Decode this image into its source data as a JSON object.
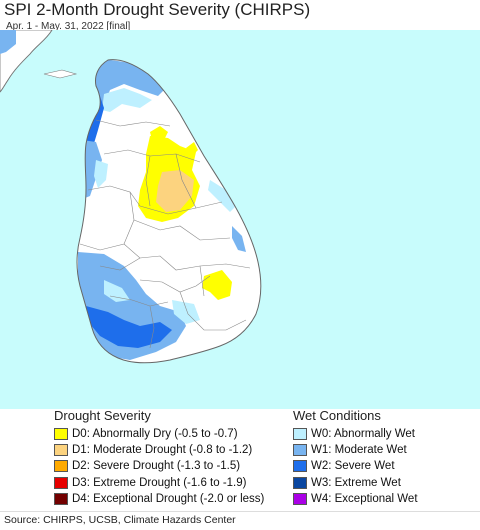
{
  "header": {
    "title": "SPI 2-Month Drought Severity (CHIRPS)",
    "subtitle": "Apr. 1 - May. 31, 2022 [final]"
  },
  "map": {
    "sea_color": "#c8fcfc",
    "land_color": "#ffffff",
    "border_color": "#777777"
  },
  "legend": {
    "drought": {
      "title": "Drought Severity",
      "items": [
        {
          "label": "D0: Abnormally Dry (-0.5 to -0.7)",
          "color": "#ffff00"
        },
        {
          "label": "D1: Moderate Drought (-0.8 to -1.2)",
          "color": "#fcd37f"
        },
        {
          "label": "D2: Severe Drought (-1.3 to -1.5)",
          "color": "#ffaa00"
        },
        {
          "label": "D3: Extreme Drought (-1.6 to -1.9)",
          "color": "#e60000"
        },
        {
          "label": "D4: Exceptional Drought (-2.0 or less)",
          "color": "#730000"
        }
      ]
    },
    "wet": {
      "title": "Wet Conditions",
      "items": [
        {
          "label": "W0: Abnormally Wet",
          "color": "#bef0ff"
        },
        {
          "label": "W1: Moderate Wet",
          "color": "#78b4f0"
        },
        {
          "label": "W2: Severe Wet",
          "color": "#1e6eeb"
        },
        {
          "label": "W3: Extreme Wet",
          "color": "#0a46a0"
        },
        {
          "label": "W4: Exceptional Wet",
          "color": "#aa00e6"
        }
      ]
    }
  },
  "footer": {
    "source": "Source: CHIRPS, UCSB, Climate Hazards Center"
  }
}
